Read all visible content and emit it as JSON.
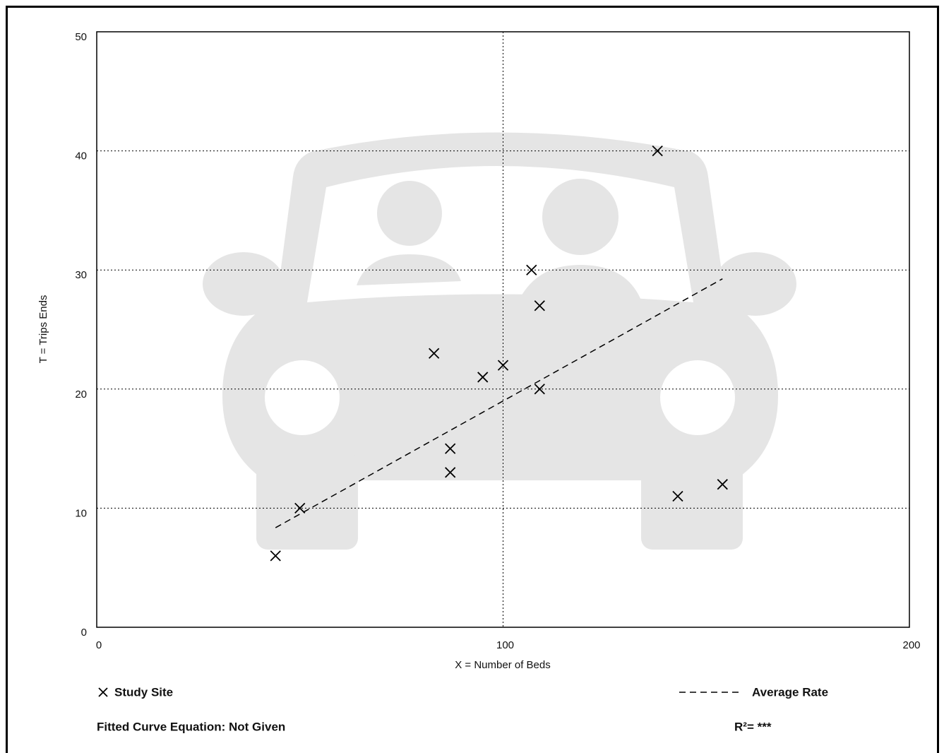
{
  "chart_data": {
    "type": "scatter",
    "x_label": "X = Number of Beds",
    "y_label": "T = Trips Ends",
    "xlim": [
      0,
      200
    ],
    "xticks": [
      0,
      100,
      200
    ],
    "ylim": [
      0,
      50
    ],
    "yticks": [
      0,
      10,
      20,
      30,
      40,
      50
    ],
    "grid": true,
    "series": [
      {
        "name": "Study Site",
        "color": "#000000",
        "marker": "x",
        "x": [
          44,
          50,
          83,
          87,
          87,
          95,
          100,
          107,
          109,
          109,
          138,
          143,
          154
        ],
        "values": [
          6,
          10,
          23,
          15,
          13,
          21,
          22,
          30,
          27,
          20,
          40,
          11,
          12
        ]
      },
      {
        "name": "Average Rate",
        "color": "#000000",
        "line_style": "dashed",
        "x": [
          44,
          154
        ],
        "values": [
          8.36,
          29.26
        ]
      }
    ],
    "annotations": [
      "Fitted Curve Equation: Not Given",
      "R²= ***"
    ]
  }
}
